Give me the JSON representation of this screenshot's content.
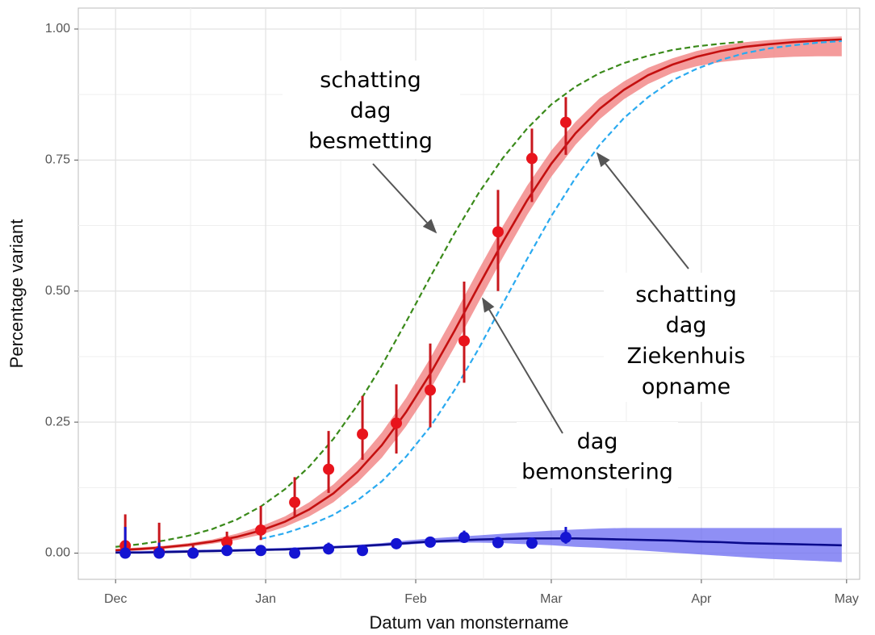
{
  "chart_data": {
    "type": "line",
    "x_label": "Datum van monstername",
    "y_label": "Percentage variant",
    "xlim": [
      -7.7,
      153.7
    ],
    "ylim": [
      -0.05,
      1.04
    ],
    "xticks": [
      {
        "value": 0,
        "label": "Dec"
      },
      {
        "value": 31,
        "label": "Jan"
      },
      {
        "value": 62,
        "label": "Feb"
      },
      {
        "value": 90,
        "label": "Mar"
      },
      {
        "value": 121,
        "label": "Apr"
      },
      {
        "value": 151,
        "label": "May"
      }
    ],
    "yticks": [
      {
        "value": 0,
        "label": "0.00"
      },
      {
        "value": 0.25,
        "label": "0.25"
      },
      {
        "value": 0.5,
        "label": "0.50"
      },
      {
        "value": 0.75,
        "label": "0.75"
      },
      {
        "value": 1,
        "label": "1.00"
      }
    ],
    "grid": true,
    "x": [
      0,
      5,
      10,
      15,
      20,
      25,
      30,
      35,
      40,
      45,
      50,
      55,
      60,
      65,
      70,
      75,
      80,
      85,
      90,
      95,
      100,
      105,
      110,
      115,
      120,
      125,
      130,
      135,
      140,
      145,
      150
    ],
    "series": [
      {
        "color": "#c41010",
        "style": "solid",
        "band_color": "#f07a7a",
        "values": [
          0.0055,
          0.0078,
          0.011,
          0.0156,
          0.022,
          0.0309,
          0.0432,
          0.06,
          0.0834,
          0.114,
          0.155,
          0.206,
          0.269,
          0.342,
          0.424,
          0.51,
          0.594,
          0.673,
          0.743,
          0.801,
          0.848,
          0.884,
          0.912,
          0.932,
          0.947,
          0.958,
          0.966,
          0.971,
          0.975,
          0.978,
          0.98
        ],
        "lower": [
          0.003,
          0.005,
          0.008,
          0.012,
          0.018,
          0.025,
          0.035,
          0.05,
          0.07,
          0.097,
          0.135,
          0.182,
          0.242,
          0.312,
          0.393,
          0.479,
          0.564,
          0.645,
          0.718,
          0.779,
          0.828,
          0.866,
          0.895,
          0.916,
          0.929,
          0.937,
          0.942,
          0.945,
          0.947,
          0.948,
          0.948
        ],
        "upper": [
          0.008,
          0.011,
          0.014,
          0.019,
          0.026,
          0.037,
          0.051,
          0.07,
          0.097,
          0.131,
          0.175,
          0.23,
          0.296,
          0.372,
          0.455,
          0.541,
          0.624,
          0.701,
          0.768,
          0.823,
          0.868,
          0.9,
          0.926,
          0.944,
          0.958,
          0.968,
          0.975,
          0.979,
          0.982,
          0.984,
          0.986
        ]
      },
      {
        "color": "#3a8a1a",
        "style": "dashed",
        "values": [
          0.012,
          0.017,
          0.024,
          0.033,
          0.046,
          0.064,
          0.089,
          0.122,
          0.165,
          0.218,
          0.283,
          0.358,
          0.441,
          0.527,
          0.61,
          0.687,
          0.754,
          0.81,
          0.856,
          0.89,
          0.916,
          0.935,
          0.949,
          0.96,
          0.967,
          0.972,
          0.976,
          null,
          null,
          null,
          null
        ]
      },
      {
        "color": "#2aaaf0",
        "style": "dashed",
        "values": [
          null,
          null,
          null,
          null,
          null,
          null,
          0.027,
          0.038,
          0.053,
          0.073,
          0.101,
          0.137,
          0.184,
          0.241,
          0.311,
          0.39,
          0.476,
          0.561,
          0.643,
          0.716,
          0.779,
          0.83,
          0.87,
          0.902,
          0.924,
          0.941,
          0.954,
          0.963,
          0.969,
          0.974,
          0.977
        ]
      },
      {
        "color": "#0a0a8c",
        "style": "solid",
        "band_color": "#6a6af2",
        "values": [
          0.001,
          0.001,
          0.002,
          0.003,
          0.004,
          0.005,
          0.006,
          0.007,
          0.009,
          0.011,
          0.013,
          0.016,
          0.019,
          0.022,
          0.024,
          0.026,
          0.027,
          0.028,
          0.028,
          0.028,
          0.027,
          0.026,
          0.025,
          0.024,
          0.022,
          0.021,
          0.019,
          0.018,
          0.017,
          0.016,
          0.015
        ],
        "lower": [
          -0.001,
          -0.001,
          0.0,
          0.001,
          0.002,
          0.003,
          0.004,
          0.005,
          0.007,
          0.009,
          0.011,
          0.013,
          0.016,
          0.019,
          0.02,
          0.02,
          0.019,
          0.017,
          0.015,
          0.012,
          0.01,
          0.007,
          0.004,
          0.001,
          -0.002,
          -0.005,
          -0.008,
          -0.011,
          -0.013,
          -0.015,
          -0.017
        ],
        "upper": [
          0.004,
          0.004,
          0.005,
          0.006,
          0.007,
          0.008,
          0.009,
          0.01,
          0.012,
          0.014,
          0.016,
          0.019,
          0.024,
          0.028,
          0.031,
          0.034,
          0.037,
          0.04,
          0.043,
          0.045,
          0.047,
          0.048,
          0.048,
          0.048,
          0.048,
          0.048,
          0.048,
          0.048,
          0.048,
          0.048,
          0.048
        ]
      }
    ],
    "points": [
      {
        "color": "#e8141c",
        "bar_color": "#c8171d",
        "x": [
          2,
          9,
          16,
          23,
          30,
          37,
          44,
          51,
          58,
          65,
          72,
          79,
          86,
          93
        ],
        "values": [
          0.014,
          0.003,
          0.0,
          0.021,
          0.044,
          0.097,
          0.16,
          0.227,
          0.248,
          0.311,
          0.405,
          0.613,
          0.753,
          0.822
        ],
        "lower": [
          0.0,
          0.0,
          0.0,
          0.008,
          0.025,
          0.07,
          0.115,
          0.178,
          0.19,
          0.24,
          0.325,
          0.5,
          0.67,
          0.76
        ],
        "upper": [
          0.074,
          0.058,
          0.015,
          0.041,
          0.09,
          0.145,
          0.233,
          0.3,
          0.322,
          0.4,
          0.518,
          0.693,
          0.81,
          0.87
        ]
      },
      {
        "color": "#1414d2",
        "bar_color": "#1414d2",
        "x": [
          2,
          9,
          16,
          23,
          30,
          37,
          44,
          51,
          58,
          65,
          72,
          79,
          86,
          93
        ],
        "values": [
          0.0,
          0.0,
          0.0,
          0.005,
          0.005,
          0.0,
          0.008,
          0.005,
          0.018,
          0.021,
          0.03,
          0.02,
          0.019,
          0.03
        ],
        "lower": [
          0.0,
          0.0,
          0.0,
          0.0,
          0.0,
          0.0,
          0.0,
          0.0,
          0.01,
          0.012,
          0.02,
          0.012,
          0.01,
          0.018
        ],
        "upper": [
          0.05,
          0.02,
          0.01,
          0.012,
          0.012,
          0.006,
          0.02,
          0.013,
          0.028,
          0.03,
          0.043,
          0.03,
          0.03,
          0.05
        ]
      }
    ],
    "annotations": [
      {
        "lines": [
          "schatting",
          "dag"
        ],
        "highlight": "besmetting",
        "highlight_color": "#3a8a1a"
      },
      {
        "lines": [
          "schatting",
          "dag"
        ],
        "highlight": "Ziekenhuis opname",
        "highlight_color": "#1a7cc8"
      },
      {
        "lines": [
          "dag"
        ],
        "highlight": "bemonstering",
        "highlight_color": "#e81010"
      }
    ]
  }
}
